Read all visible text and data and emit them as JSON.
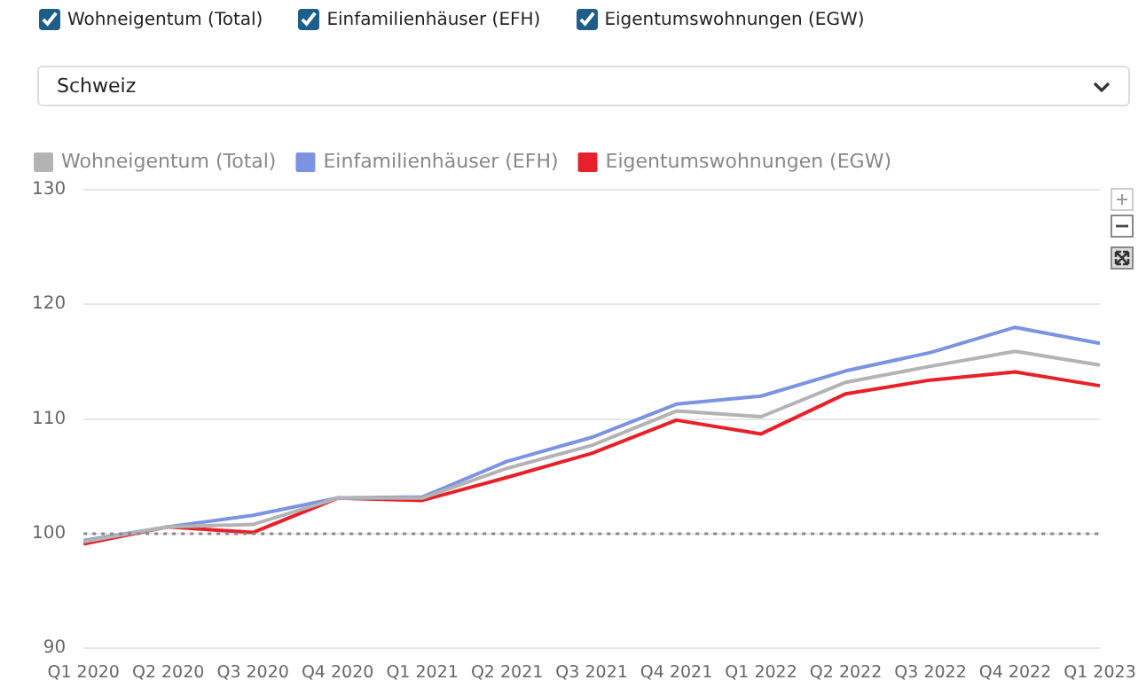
{
  "chart_data": {
    "type": "line",
    "subtitle": "Schweiz",
    "categories": [
      "Q1 2020",
      "Q2 2020",
      "Q3 2020",
      "Q4 2020",
      "Q1 2021",
      "Q2 2021",
      "Q3 2021",
      "Q4 2021",
      "Q1 2022",
      "Q2 2022",
      "Q3 2022",
      "Q4 2022",
      "Q1 2023"
    ],
    "series": [
      {
        "name": "Wohneigentum (Total)",
        "color": "#b3b3b3",
        "values": [
          99.3,
          100.6,
          100.8,
          103.1,
          103.1,
          105.7,
          107.7,
          110.7,
          110.2,
          113.2,
          114.6,
          115.9,
          114.7
        ]
      },
      {
        "name": "Einfamilienhäuser (EFH)",
        "color": "#7b93e0",
        "values": [
          99.4,
          100.6,
          101.6,
          103.1,
          103.2,
          106.3,
          108.4,
          111.3,
          112.0,
          114.2,
          115.8,
          118.0,
          116.6
        ]
      },
      {
        "name": "Eigentumswohnungen (EGW)",
        "color": "#e8202a",
        "values": [
          99.1,
          100.6,
          100.1,
          103.1,
          102.9,
          104.9,
          107.0,
          109.9,
          108.7,
          112.2,
          113.4,
          114.1,
          112.9
        ]
      }
    ],
    "ylim": [
      90,
      130
    ],
    "yticks": [
      90,
      100,
      110,
      120,
      130
    ],
    "grid": "y",
    "legend": "top left",
    "marker": "none",
    "line_style": "solid",
    "ref_lines": [
      {
        "axis": "y",
        "value": 100,
        "color": "#888888",
        "line_style": "dotted"
      }
    ]
  }
}
